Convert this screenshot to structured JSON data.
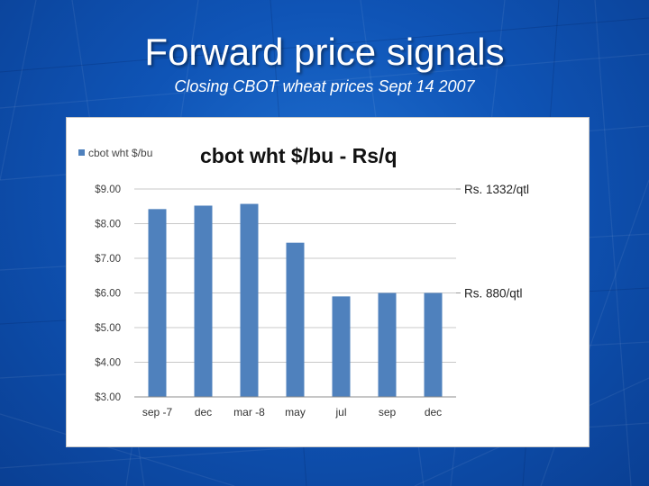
{
  "slide": {
    "title": "Forward price signals",
    "subtitle": "Closing CBOT wheat prices Sept 14 2007"
  },
  "chart_data": {
    "type": "bar",
    "title": "cbot wht $/bu - Rs/q",
    "categories": [
      "sep -7",
      "dec",
      "mar -8",
      "may",
      "jul",
      "sep",
      "dec"
    ],
    "series": [
      {
        "name": "cbot wht $/bu",
        "values": [
          8.42,
          8.52,
          8.57,
          7.45,
          5.9,
          6.0,
          6.0
        ]
      }
    ],
    "y_ticks": [
      "$9.00",
      "$8.00",
      "$7.00",
      "$6.00",
      "$5.00",
      "$4.00",
      "$3.00"
    ],
    "ylim": [
      3,
      9
    ],
    "grid": true,
    "legend_position": "top-left",
    "annotations": [
      {
        "text": "Rs. 1332/qtl",
        "y": 9.0
      },
      {
        "text": "Rs. 880/qtl",
        "y": 6.0
      }
    ],
    "bar_color": "#4f81bd"
  }
}
